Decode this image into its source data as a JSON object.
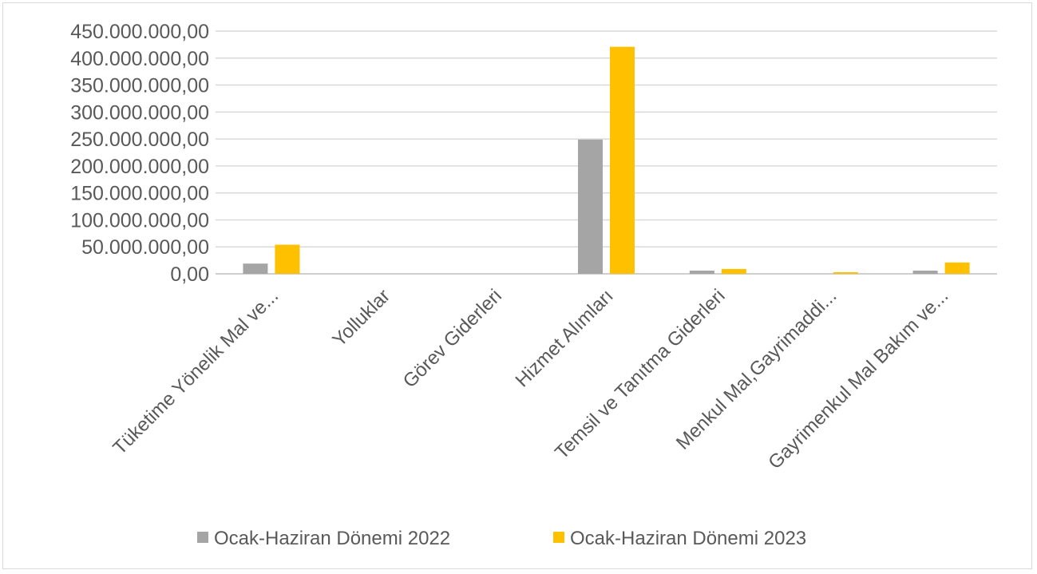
{
  "chart_data": {
    "type": "bar",
    "categories": [
      "Tüketime Yönelik Mal ve...",
      "Yolluklar",
      "Görev Giderleri",
      "Hizmet Alımları",
      "Temsil ve Tanıtma Giderleri",
      "Menkul Mal,Gayrimaddi...",
      "Gayrimenkul Mal Bakım ve..."
    ],
    "series": [
      {
        "name": "Ocak-Haziran Dönemi 2022",
        "color": "#a5a5a5",
        "values": [
          19000000,
          0,
          0,
          249000000,
          6000000,
          0,
          6000000
        ]
      },
      {
        "name": "Ocak-Haziran Dönemi 2023",
        "color": "#ffc000",
        "values": [
          54000000,
          0,
          0,
          421000000,
          9000000,
          3000000,
          21000000
        ]
      }
    ],
    "ylim": [
      0,
      450000000
    ],
    "y_ticks": [
      {
        "value": 0,
        "label": "0,00"
      },
      {
        "value": 50000000,
        "label": "50.000.000,00"
      },
      {
        "value": 100000000,
        "label": "100.000.000,00"
      },
      {
        "value": 150000000,
        "label": "150.000.000,00"
      },
      {
        "value": 200000000,
        "label": "200.000.000,00"
      },
      {
        "value": 250000000,
        "label": "250.000.000,00"
      },
      {
        "value": 300000000,
        "label": "300.000.000,00"
      },
      {
        "value": 350000000,
        "label": "350.000.000,00"
      },
      {
        "value": 400000000,
        "label": "400.000.000,00"
      },
      {
        "value": 450000000,
        "label": "450.000.000,00"
      }
    ],
    "grid": true,
    "legend_position": "bottom",
    "title": "",
    "xlabel": "",
    "ylabel": ""
  }
}
